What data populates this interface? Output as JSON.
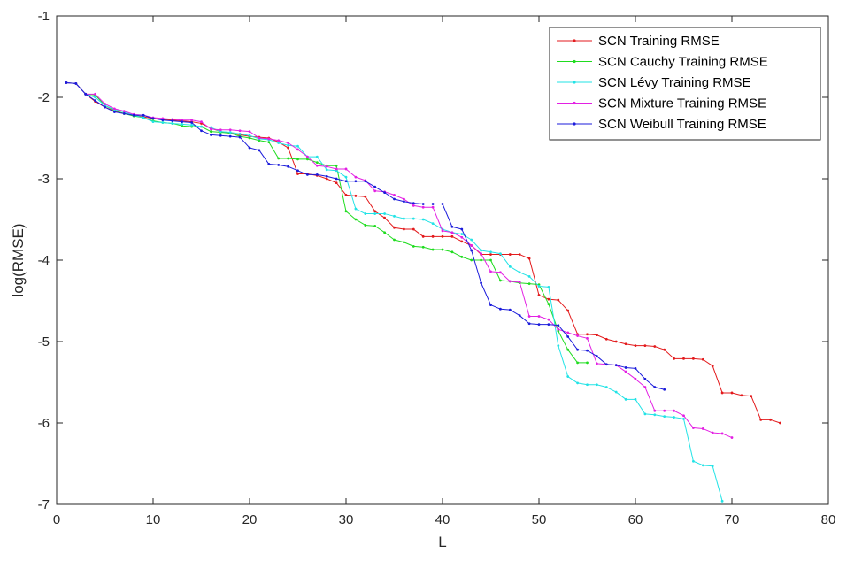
{
  "chart_data": {
    "type": "line",
    "xlabel": "L",
    "ylabel": "log(RMSE)",
    "xlim": [
      0,
      80
    ],
    "ylim": [
      -7,
      -1
    ],
    "xticks": [
      0,
      10,
      20,
      30,
      40,
      50,
      60,
      70,
      80
    ],
    "yticks": [
      -7,
      -6,
      -5,
      -4,
      -3,
      -2,
      -1
    ],
    "grid": false,
    "legend_position": "top-right",
    "series": [
      {
        "name": "SCN Training RMSE",
        "color": "#e31a1c",
        "x": [
          1,
          2,
          3,
          4,
          5,
          6,
          7,
          8,
          9,
          10,
          11,
          12,
          13,
          14,
          15,
          16,
          17,
          18,
          19,
          20,
          21,
          22,
          23,
          24,
          25,
          26,
          27,
          28,
          29,
          30,
          31,
          32,
          33,
          34,
          35,
          36,
          37,
          38,
          39,
          40,
          41,
          42,
          43,
          44,
          45,
          46,
          47,
          48,
          49,
          50,
          51,
          52,
          53,
          54,
          55,
          56,
          57,
          58,
          59,
          60,
          61,
          62,
          63,
          64,
          65,
          66,
          67,
          68,
          69,
          70,
          71,
          72,
          73,
          74,
          75
        ],
        "y": [
          -1.82,
          -1.83,
          -1.96,
          -2.05,
          -2.12,
          -2.17,
          -2.2,
          -2.22,
          -2.24,
          -2.26,
          -2.27,
          -2.28,
          -2.29,
          -2.3,
          -2.32,
          -2.38,
          -2.42,
          -2.44,
          -2.46,
          -2.48,
          -2.49,
          -2.5,
          -2.55,
          -2.62,
          -2.94,
          -2.94,
          -2.96,
          -3.0,
          -3.05,
          -3.2,
          -3.21,
          -3.22,
          -3.4,
          -3.48,
          -3.6,
          -3.62,
          -3.62,
          -3.71,
          -3.71,
          -3.71,
          -3.71,
          -3.77,
          -3.82,
          -3.93,
          -3.93,
          -3.93,
          -3.93,
          -3.93,
          -3.98,
          -4.43,
          -4.48,
          -4.49,
          -4.62,
          -4.91,
          -4.91,
          -4.92,
          -4.97,
          -5.0,
          -5.03,
          -5.05,
          -5.05,
          -5.06,
          -5.1,
          -5.21,
          -5.21,
          -5.21,
          -5.22,
          -5.3,
          -5.63,
          -5.63,
          -5.66,
          -5.67,
          -5.96,
          -5.96,
          -6.0
        ]
      },
      {
        "name": "SCN Cauchy Training RMSE",
        "color": "#1fdc1f",
        "x": [
          1,
          2,
          3,
          4,
          5,
          6,
          7,
          8,
          9,
          10,
          11,
          12,
          13,
          14,
          15,
          16,
          17,
          18,
          19,
          20,
          21,
          22,
          23,
          24,
          25,
          26,
          27,
          28,
          29,
          30,
          31,
          32,
          33,
          34,
          35,
          36,
          37,
          38,
          39,
          40,
          41,
          42,
          43,
          44,
          45,
          46,
          47,
          48,
          49,
          50,
          51,
          52,
          53,
          54,
          55
        ],
        "y": [
          -1.82,
          -1.83,
          -1.96,
          -1.97,
          -2.1,
          -2.16,
          -2.2,
          -2.23,
          -2.25,
          -2.29,
          -2.31,
          -2.32,
          -2.35,
          -2.36,
          -2.36,
          -2.42,
          -2.43,
          -2.44,
          -2.48,
          -2.5,
          -2.53,
          -2.55,
          -2.75,
          -2.75,
          -2.76,
          -2.76,
          -2.8,
          -2.84,
          -2.84,
          -3.4,
          -3.5,
          -3.57,
          -3.58,
          -3.66,
          -3.75,
          -3.78,
          -3.83,
          -3.84,
          -3.87,
          -3.87,
          -3.9,
          -3.96,
          -4.0,
          -4.0,
          -4.0,
          -4.25,
          -4.26,
          -4.28,
          -4.29,
          -4.3,
          -4.54,
          -4.87,
          -5.1,
          -5.26,
          -5.26
        ]
      },
      {
        "name": "SCN Lévy Training RMSE",
        "color": "#22e3e6",
        "x": [
          1,
          2,
          3,
          4,
          5,
          6,
          7,
          8,
          9,
          10,
          11,
          12,
          13,
          14,
          15,
          16,
          17,
          18,
          19,
          20,
          21,
          22,
          23,
          24,
          25,
          26,
          27,
          28,
          29,
          30,
          31,
          32,
          33,
          34,
          35,
          36,
          37,
          38,
          39,
          40,
          41,
          42,
          43,
          44,
          45,
          46,
          47,
          48,
          49,
          50,
          51,
          52,
          53,
          54,
          55,
          56,
          57,
          58,
          59,
          60,
          61,
          62,
          63,
          64,
          65,
          66,
          67,
          68,
          69
        ],
        "y": [
          -1.82,
          -1.83,
          -1.96,
          -2.0,
          -2.1,
          -2.15,
          -2.18,
          -2.22,
          -2.25,
          -2.3,
          -2.31,
          -2.32,
          -2.33,
          -2.34,
          -2.36,
          -2.37,
          -2.42,
          -2.43,
          -2.45,
          -2.47,
          -2.51,
          -2.52,
          -2.56,
          -2.59,
          -2.6,
          -2.73,
          -2.73,
          -2.89,
          -2.9,
          -2.98,
          -3.37,
          -3.43,
          -3.43,
          -3.43,
          -3.46,
          -3.49,
          -3.49,
          -3.5,
          -3.55,
          -3.62,
          -3.66,
          -3.68,
          -3.75,
          -3.88,
          -3.9,
          -3.92,
          -4.08,
          -4.15,
          -4.2,
          -4.32,
          -4.33,
          -5.05,
          -5.43,
          -5.51,
          -5.53,
          -5.53,
          -5.56,
          -5.62,
          -5.71,
          -5.71,
          -5.89,
          -5.9,
          -5.92,
          -5.93,
          -5.95,
          -6.47,
          -6.52,
          -6.53,
          -6.96
        ]
      },
      {
        "name": "SCN Mixture Training RMSE",
        "color": "#e320e3",
        "x": [
          1,
          2,
          3,
          4,
          5,
          6,
          7,
          8,
          9,
          10,
          11,
          12,
          13,
          14,
          15,
          16,
          17,
          18,
          19,
          20,
          21,
          22,
          23,
          24,
          25,
          26,
          27,
          28,
          29,
          30,
          31,
          32,
          33,
          34,
          35,
          36,
          37,
          38,
          39,
          40,
          41,
          42,
          43,
          44,
          45,
          46,
          47,
          48,
          49,
          50,
          51,
          52,
          53,
          54,
          55,
          56,
          57,
          58,
          59,
          60,
          61,
          62,
          63,
          64,
          65,
          66,
          67,
          68,
          69,
          70
        ],
        "y": [
          -1.82,
          -1.83,
          -1.96,
          -1.96,
          -2.08,
          -2.14,
          -2.17,
          -2.21,
          -2.22,
          -2.25,
          -2.26,
          -2.27,
          -2.28,
          -2.28,
          -2.3,
          -2.39,
          -2.4,
          -2.4,
          -2.41,
          -2.42,
          -2.5,
          -2.51,
          -2.53,
          -2.56,
          -2.64,
          -2.73,
          -2.84,
          -2.85,
          -2.88,
          -2.88,
          -2.98,
          -3.02,
          -3.15,
          -3.16,
          -3.2,
          -3.25,
          -3.33,
          -3.35,
          -3.35,
          -3.64,
          -3.66,
          -3.72,
          -3.82,
          -3.92,
          -4.14,
          -4.15,
          -4.26,
          -4.27,
          -4.69,
          -4.69,
          -4.73,
          -4.85,
          -4.89,
          -4.93,
          -4.96,
          -5.27,
          -5.28,
          -5.29,
          -5.37,
          -5.46,
          -5.56,
          -5.85,
          -5.85,
          -5.85,
          -5.91,
          -6.06,
          -6.07,
          -6.12,
          -6.13,
          -6.18
        ]
      },
      {
        "name": "SCN Weibull Training RMSE",
        "color": "#1b1bdb",
        "x": [
          1,
          2,
          3,
          4,
          5,
          6,
          7,
          8,
          9,
          10,
          11,
          12,
          13,
          14,
          15,
          16,
          17,
          18,
          19,
          20,
          21,
          22,
          23,
          24,
          25,
          26,
          27,
          28,
          29,
          30,
          31,
          32,
          33,
          34,
          35,
          36,
          37,
          38,
          39,
          40,
          41,
          42,
          43,
          44,
          45,
          46,
          47,
          48,
          49,
          50,
          51,
          52,
          53,
          54,
          55,
          56,
          57,
          58,
          59,
          60,
          61,
          62,
          63
        ],
        "y": [
          -1.82,
          -1.83,
          -1.96,
          -2.04,
          -2.12,
          -2.18,
          -2.2,
          -2.22,
          -2.22,
          -2.26,
          -2.28,
          -2.29,
          -2.3,
          -2.31,
          -2.41,
          -2.46,
          -2.47,
          -2.48,
          -2.49,
          -2.62,
          -2.65,
          -2.82,
          -2.83,
          -2.85,
          -2.9,
          -2.95,
          -2.95,
          -2.97,
          -3.0,
          -3.03,
          -3.03,
          -3.03,
          -3.1,
          -3.17,
          -3.25,
          -3.28,
          -3.3,
          -3.31,
          -3.31,
          -3.31,
          -3.59,
          -3.62,
          -3.88,
          -4.28,
          -4.55,
          -4.6,
          -4.61,
          -4.68,
          -4.78,
          -4.79,
          -4.79,
          -4.8,
          -4.94,
          -5.1,
          -5.11,
          -5.18,
          -5.28,
          -5.29,
          -5.32,
          -5.33,
          -5.46,
          -5.56,
          -5.59
        ]
      }
    ]
  }
}
